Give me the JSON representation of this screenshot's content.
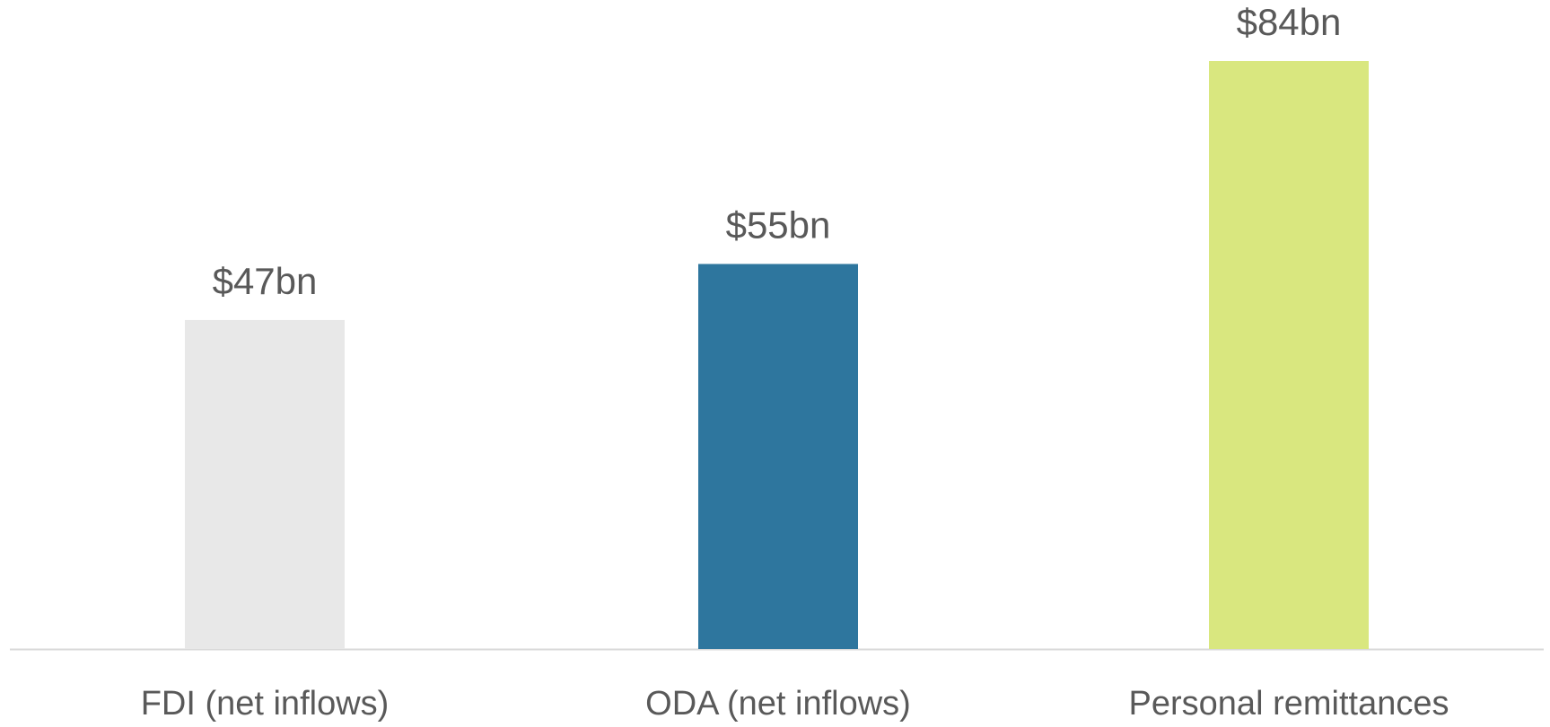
{
  "chart_data": {
    "type": "bar",
    "categories": [
      "FDI (net inflows)",
      "ODA (net inflows)",
      "Personal remittances"
    ],
    "values": [
      47,
      55,
      84
    ],
    "value_labels": [
      "$47bn",
      "$55bn",
      "$84bn"
    ],
    "colors": [
      "#e8e8e8",
      "#2e769e",
      "#d9e77f"
    ]
  }
}
